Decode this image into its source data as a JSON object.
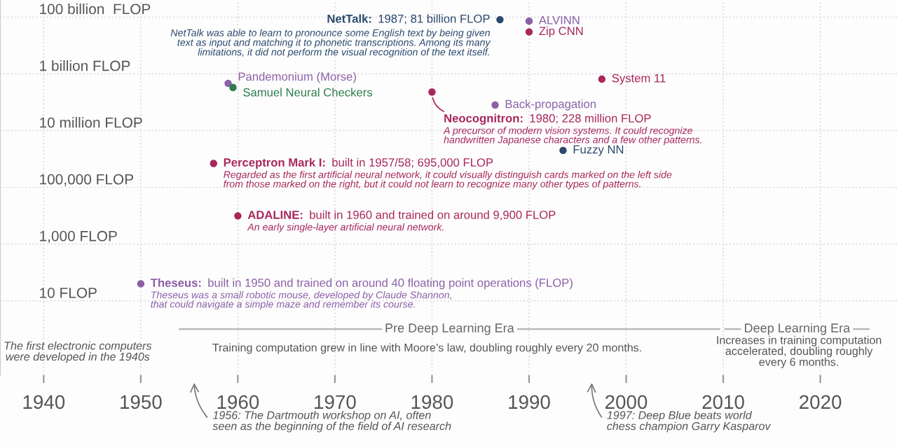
{
  "chart_data": {
    "type": "scatter",
    "log": "y",
    "xlim": [
      1935.5,
      2027.9
    ],
    "ylim": [
      0.024,
      400000000000.0
    ],
    "xticks": [
      1940,
      1950,
      1960,
      1970,
      1980,
      1990,
      2000,
      2010,
      2020
    ],
    "yticks": [
      {
        "value": 10,
        "label": "10 FLOP"
      },
      {
        "value": 1000,
        "label": "1,000 FLOP"
      },
      {
        "value": 100000,
        "label": "100,000 FLOP"
      },
      {
        "value": 10000000,
        "label": "10 million FLOP"
      },
      {
        "value": 1000000000,
        "label": "1 billion FLOP"
      },
      {
        "value": 100000000000,
        "label": "100 billion  FLOP"
      }
    ],
    "grid": true,
    "line_style": "dotted",
    "marker": "circle",
    "series": [
      {
        "name": "Theseus:",
        "color": "#8c5fa8",
        "x": [
          1950
        ],
        "values": [
          40
        ]
      },
      {
        "name": "Perceptron Mark I:",
        "color": "#a8275c",
        "x": [
          1957.5
        ],
        "values": [
          695000
        ]
      },
      {
        "name": "ADALINE:",
        "color": "#a8275c",
        "x": [
          1960
        ],
        "values": [
          9900
        ]
      },
      {
        "name": "Pandemonium (Morse)",
        "color": "#8c5fa8",
        "x": [
          1959
        ],
        "values": [
          460000000
        ]
      },
      {
        "name": "Samuel Neural Checkers",
        "color": "#2e7d4f",
        "x": [
          1959.5
        ],
        "values": [
          330000000
        ]
      },
      {
        "name": "Neocognitron:",
        "color": "#a8275c",
        "x": [
          1980
        ],
        "values": [
          228000000
        ]
      },
      {
        "name": "Back-propagation",
        "color": "#8c5fa8",
        "x": [
          1986.5
        ],
        "values": [
          80000000
        ]
      },
      {
        "name": "System 11",
        "color": "#a8275c",
        "x": [
          1997.5
        ],
        "values": [
          650000000
        ]
      },
      {
        "name": "Fuzzy NN",
        "color": "#2c4a6e",
        "x": [
          1993.5
        ],
        "values": [
          2000000
        ]
      },
      {
        "color": "#2c4a6e",
        "x": [
          1987
        ],
        "values": [
          81000000000
        ]
      },
      {
        "name": "ALVINN",
        "color": "#8c5fa8",
        "x": [
          1990
        ],
        "values": [
          72000000000
        ]
      },
      {
        "name": "Zip CNN",
        "color": "#a8275c",
        "x": [
          1990
        ],
        "values": [
          30000000000
        ]
      }
    ],
    "annotations": [
      "built in 1950 and trained on around 40 floating point operations (FLOP)",
      "Theseus was a small robotic mouse, developed by Claude Shannon,\nthat could navigate a simple maze and remember its course.",
      "built in 1957/58; 695,000 FLOP",
      "Regarded as the first artificial neural network, it could visually distinguish cards marked on the left side\nfrom those marked on the right, but it could not learn to recognize many other types of patterns.",
      "built in 1960 and trained on around 9,900 FLOP",
      "An early single-layer artificial neural network.",
      "1980; 228 million FLOP",
      "A precursor of modern vision systems. It could recognize\nhandwritten Japanese characters and a few other patterns.",
      "1987; 81 billion FLOP",
      "NetTalk was able to learn to pronounce some English text by being given\ntext as input and matching it to phonetic transcriptions. Among its many\nlimitations, it did not perform the visual recognition of the text itself.",
      "Pre Deep Learning Era",
      "Deep Learning Era",
      "The first electronic computers\nwere developed in the 1940s",
      "Training computation grew in line with Moore’s law, doubling roughly every 20 months.",
      "Increases in training computation\naccelerated, doubling roughly\nevery 6 months.",
      "1956: The Dartmouth workshop on AI, often\nseen as the beginning of the field of AI research",
      "1997: Deep Blue beats world\nchess champion Garry Kasparov",
      "NetTalk:"
    ]
  }
}
